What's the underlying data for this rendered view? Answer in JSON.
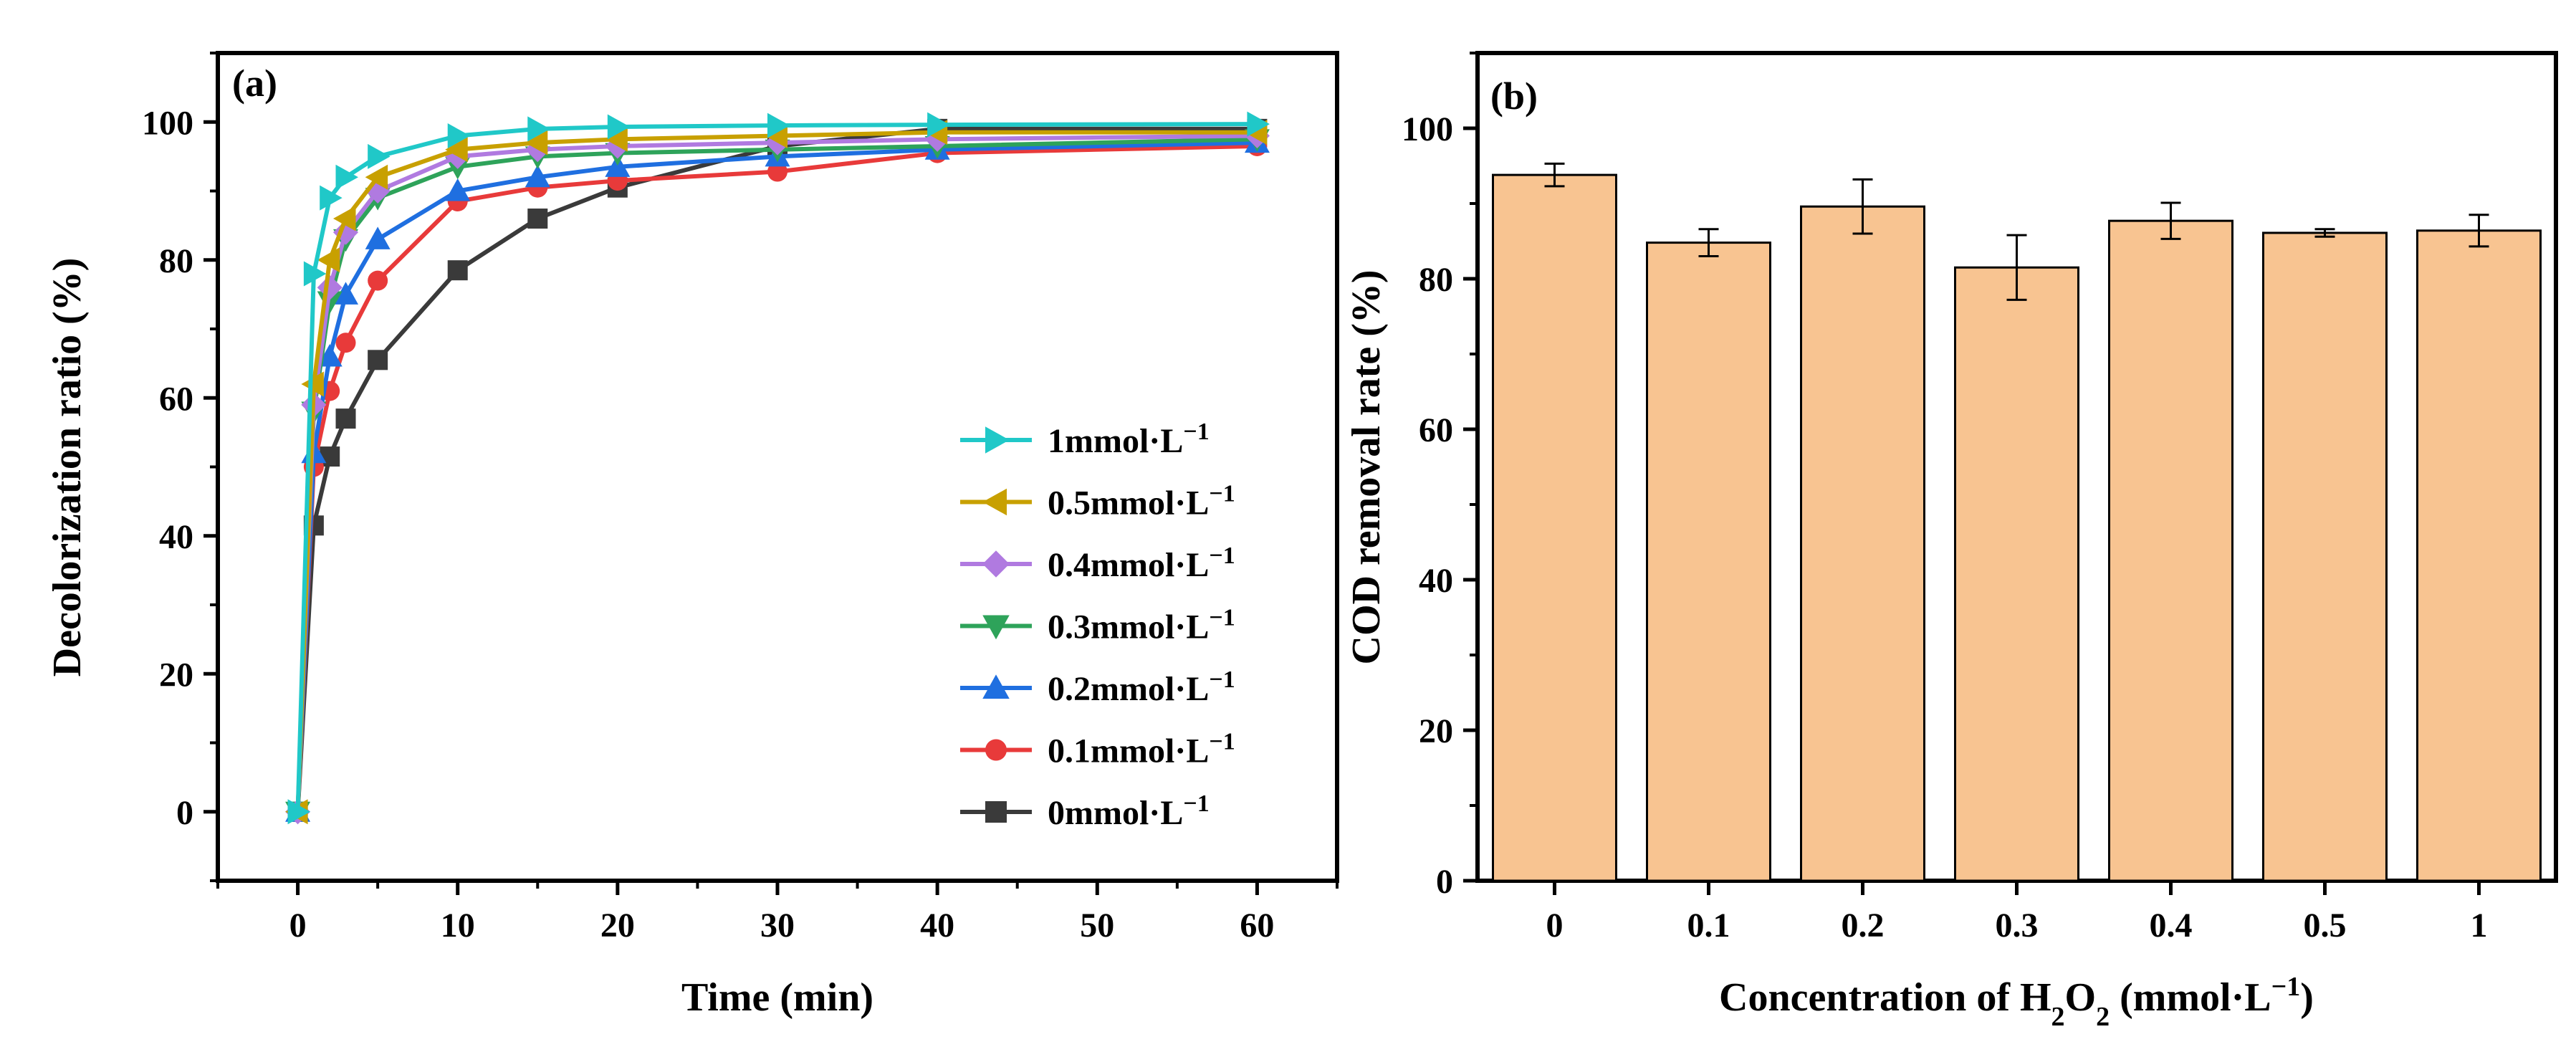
{
  "chart_data": [
    {
      "type": "line",
      "panel_label": "(a)",
      "xlabel": "Time (min)",
      "ylabel": "Decolorization ratio (%)",
      "xlim": [
        -5,
        65
      ],
      "ylim": [
        -10,
        110
      ],
      "x_ticks": [
        "0",
        "10",
        "20",
        "30",
        "40",
        "50",
        "60"
      ],
      "y_ticks": [
        "0",
        "20",
        "40",
        "60",
        "80",
        "100"
      ],
      "grid": false,
      "legend_position": "bottom-right",
      "x": [
        0,
        1,
        2,
        3,
        5,
        10,
        15,
        20,
        30,
        40,
        60
      ],
      "series": [
        {
          "name": "1mmol·L",
          "sup": "−1",
          "color": "#20c8c8",
          "marker": "triangle-right",
          "values": [
            0,
            78,
            89,
            92,
            95,
            98,
            99,
            99.3,
            99.5,
            99.6,
            99.7
          ]
        },
        {
          "name": "0.5mmol·L",
          "sup": "−1",
          "color": "#c8a000",
          "marker": "triangle-left",
          "values": [
            0,
            62,
            80,
            86,
            92,
            96,
            97,
            97.5,
            98,
            98.5,
            98.5
          ]
        },
        {
          "name": "0.4mmol·L",
          "sup": "−1",
          "color": "#b07ae0",
          "marker": "diamond",
          "values": [
            0,
            59,
            76,
            84,
            90,
            95,
            96,
            96.5,
            97,
            97.5,
            98
          ]
        },
        {
          "name": "0.3mmol·L",
          "sup": "−1",
          "color": "#2ea35a",
          "marker": "triangle-down",
          "values": [
            0,
            58,
            74,
            83,
            89,
            93.5,
            95,
            95.5,
            96,
            96.5,
            97.5
          ]
        },
        {
          "name": "0.2mmol·L",
          "sup": "−1",
          "color": "#1f6fe0",
          "marker": "triangle-up",
          "values": [
            0,
            52,
            66,
            75,
            83,
            90,
            92,
            93.5,
            95,
            96,
            97
          ]
        },
        {
          "name": "0.1mmol·L",
          "sup": "−1",
          "color": "#e83a3a",
          "marker": "circle",
          "values": [
            0,
            50,
            61,
            68,
            77,
            88.5,
            90.5,
            91.5,
            92.8,
            95.5,
            96.5
          ]
        },
        {
          "name": "0mmol·L",
          "sup": "−1",
          "color": "#3a3a3a",
          "marker": "square",
          "values": [
            0,
            41.5,
            51.5,
            57,
            65.5,
            78.5,
            86,
            90.5,
            96.5,
            99,
            99
          ]
        }
      ]
    },
    {
      "type": "bar",
      "panel_label": "(b)",
      "xlabel_main": "Concentration of H",
      "xlabel_sub1": "2",
      "xlabel_mid": "O",
      "xlabel_sub2": "2",
      "xlabel_tail": " (mmol·L",
      "xlabel_sup": "−1",
      "xlabel_close": ")",
      "ylabel": "COD removal rate (%)",
      "ylim": [
        0,
        110
      ],
      "y_ticks": [
        "0",
        "20",
        "40",
        "60",
        "80",
        "100"
      ],
      "grid": false,
      "bar_color": "#f8c491",
      "categories": [
        "0",
        "0.1",
        "0.2",
        "0.3",
        "0.4",
        "0.5",
        "1"
      ],
      "values": [
        93.8,
        84.8,
        89.6,
        81.5,
        87.7,
        86.1,
        86.4
      ],
      "errors": [
        1.5,
        1.8,
        3.6,
        4.3,
        2.4,
        0.5,
        2.1
      ]
    }
  ]
}
